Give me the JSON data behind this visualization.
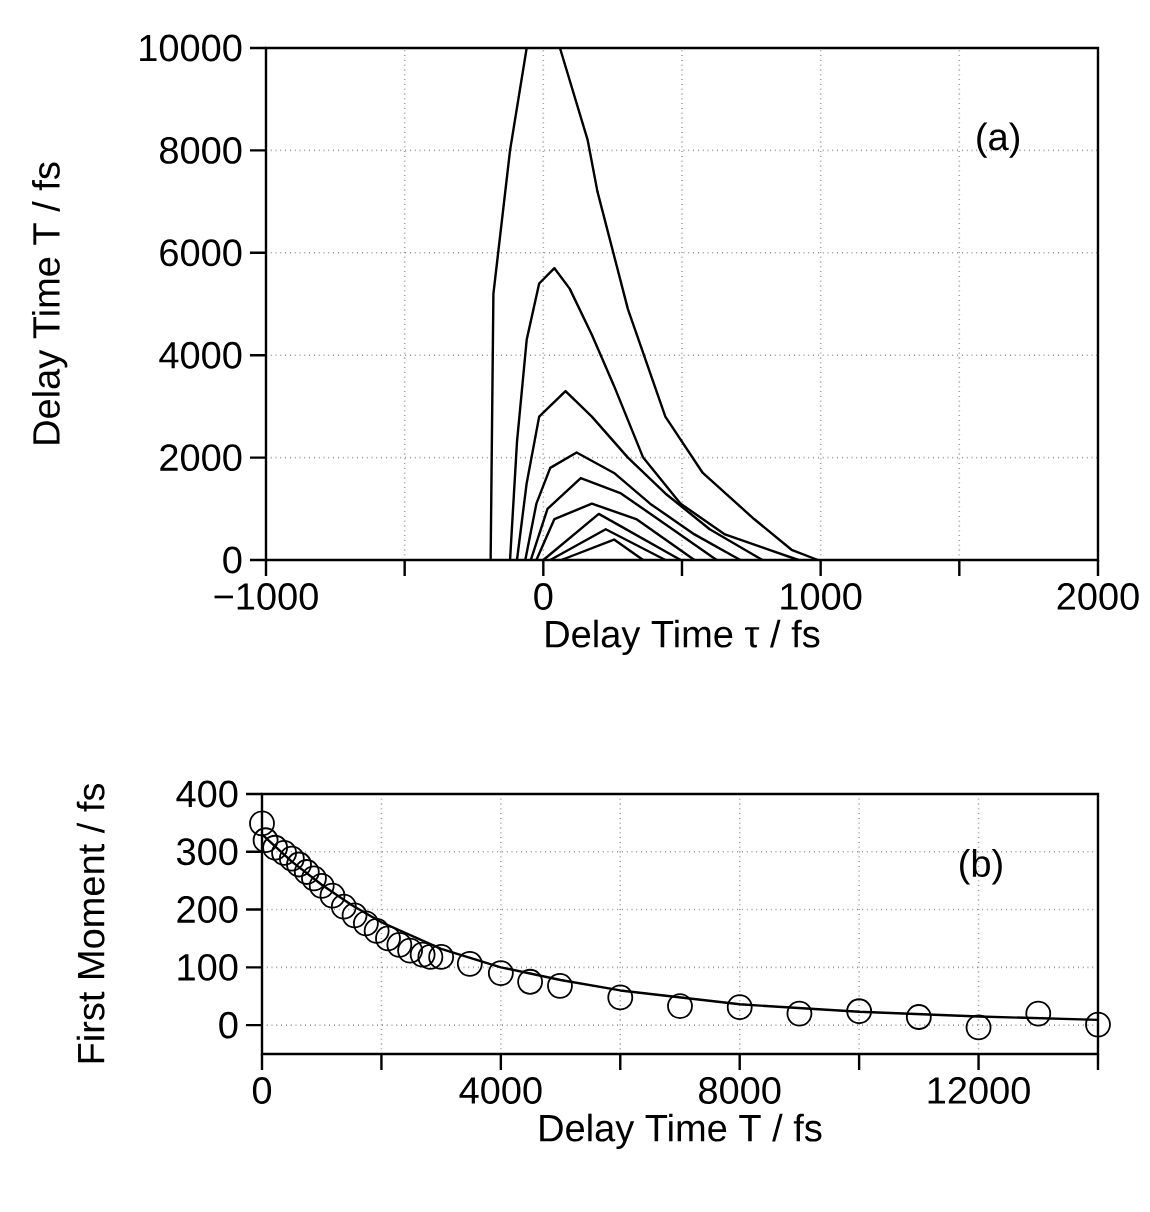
{
  "chart_data": [
    {
      "type": "line",
      "xlabel": "Delay Time τ / fs",
      "ylabel": "Delay Time T / fs",
      "annotations": [
        "(a)"
      ],
      "xlim": [
        -1000,
        2000
      ],
      "ylim": [
        0,
        10000
      ],
      "xticks": [
        {
          "value": -1000,
          "label": "−1000"
        },
        {
          "value": -500,
          "label": null
        },
        0,
        {
          "value": 500,
          "label": null
        },
        1000,
        {
          "value": 1500,
          "label": null
        },
        2000
      ],
      "yticks": [
        0,
        2000,
        4000,
        6000,
        8000,
        10000
      ],
      "grid": true,
      "series": [
        {
          "color": "#000000",
          "x": [
            -190,
            -180,
            -120,
            -60,
            0,
            60,
            160,
            195,
            305,
            440,
            575,
            760,
            895,
            990
          ],
          "values": [
            0,
            5200,
            8000,
            10000,
            null,
            10000,
            8200,
            7200,
            4900,
            2800,
            1700,
            800,
            200,
            0
          ]
        },
        {
          "color": "#000000",
          "x": [
            -120,
            -95,
            -60,
            -15,
            40,
            95,
            175,
            255,
            360,
            495,
            655,
            815,
            920
          ],
          "values": [
            0,
            2300,
            4300,
            5400,
            5700,
            5300,
            4400,
            3400,
            2000,
            1100,
            500,
            200,
            0
          ]
        },
        {
          "color": "#000000",
          "x": [
            -95,
            -60,
            -15,
            80,
            175,
            305,
            440,
            600,
            790
          ],
          "values": [
            0,
            1500,
            2800,
            3300,
            2800,
            2000,
            1300,
            600,
            0
          ]
        },
        {
          "color": "#000000",
          "x": [
            -65,
            -25,
            25,
            120,
            255,
            385,
            545,
            710
          ],
          "values": [
            0,
            1100,
            1800,
            2100,
            1700,
            1100,
            500,
            0
          ]
        },
        {
          "color": "#000000",
          "x": [
            -45,
            15,
            135,
            280,
            440,
            625
          ],
          "values": [
            0,
            1000,
            1600,
            1300,
            700,
            0
          ]
        },
        {
          "color": "#000000",
          "x": [
            -25,
            40,
            175,
            335,
            545
          ],
          "values": [
            0,
            800,
            1100,
            800,
            0
          ]
        },
        {
          "color": "#000000",
          "x": [
            0,
            200,
            495
          ],
          "values": [
            0,
            900,
            0
          ]
        },
        {
          "color": "#000000",
          "x": [
            25,
            225,
            440
          ],
          "values": [
            0,
            600,
            0
          ]
        },
        {
          "color": "#000000",
          "x": [
            65,
            255,
            360
          ],
          "values": [
            0,
            400,
            0
          ]
        }
      ]
    },
    {
      "type": "scatter",
      "xlabel": "Delay Time T / fs",
      "ylabel": "First Moment / fs",
      "annotations": [
        "(b)"
      ],
      "xlim": [
        0,
        14000
      ],
      "ylim": [
        -50,
        400
      ],
      "xticks": [
        0,
        {
          "value": 2000,
          "label": null
        },
        4000,
        {
          "value": 6000,
          "label": null
        },
        8000,
        {
          "value": 10000,
          "label": null
        },
        12000,
        {
          "value": 14000,
          "label": null
        }
      ],
      "yticks": [
        0,
        100,
        200,
        300,
        400
      ],
      "grid": true,
      "series": [
        {
          "marker": "circle",
          "color": "#000000",
          "x": [
            0,
            60,
            220,
            370,
            500,
            620,
            750,
            870,
            1000,
            1180,
            1370,
            1550,
            1740,
            1920,
            2110,
            2300,
            2480,
            2690,
            2820,
            3000,
            3480,
            4000,
            4490,
            4990,
            6000,
            7000,
            8000,
            9000,
            10000,
            11000,
            12000,
            13000,
            14000
          ],
          "values": [
            349,
            320,
            307,
            298,
            288,
            278,
            265,
            254,
            241,
            224,
            205,
            190,
            176,
            163,
            150,
            139,
            129,
            122,
            118,
            118,
            106,
            90,
            75,
            68,
            48,
            33,
            31,
            20,
            24,
            14,
            -4,
            20,
            1
          ]
        },
        {
          "type": "line",
          "marker": "none",
          "color": "#000000",
          "x": [
            0,
            500,
            1000,
            1500,
            2000,
            3000,
            4000,
            5000,
            6000,
            8000,
            10000,
            12000,
            14000
          ],
          "values": [
            330,
            283,
            243,
            208,
            178,
            132,
            100,
            78,
            60,
            36,
            23,
            15,
            9
          ]
        }
      ]
    }
  ]
}
